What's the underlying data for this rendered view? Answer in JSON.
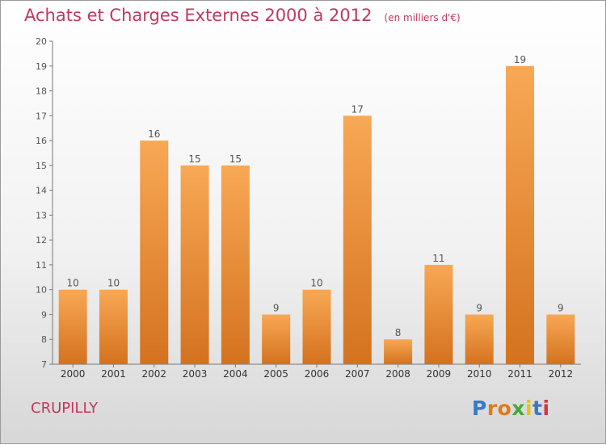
{
  "title": "Achats et Charges Externes 2000 à 2012",
  "unit": "(en milliers d'€)",
  "commune": "CRUPILLY",
  "logo": "Proxiti",
  "colors": {
    "title": "#c0395a",
    "bar_top": "#f8a855",
    "bar_bottom": "#d4721e",
    "logo_letters": [
      "#3a78c8",
      "#e07a1a",
      "#e07a1a",
      "#4aa83a",
      "#e8c21a",
      "#3a78c8",
      "#d8343c"
    ]
  },
  "chart_data": {
    "type": "bar",
    "title": "Achats et Charges Externes 2000 à 2012",
    "xlabel": "",
    "ylabel": "",
    "categories": [
      "2000",
      "2001",
      "2002",
      "2003",
      "2004",
      "2005",
      "2006",
      "2007",
      "2008",
      "2009",
      "2010",
      "2011",
      "2012"
    ],
    "values": [
      10,
      10,
      16,
      15,
      15,
      9,
      10,
      17,
      8,
      11,
      9,
      19,
      9
    ],
    "ylim": [
      7,
      20
    ],
    "yticks": [
      7,
      8,
      9,
      10,
      11,
      12,
      13,
      14,
      15,
      16,
      17,
      18,
      19,
      20
    ],
    "grid": false,
    "data_labels": true
  }
}
